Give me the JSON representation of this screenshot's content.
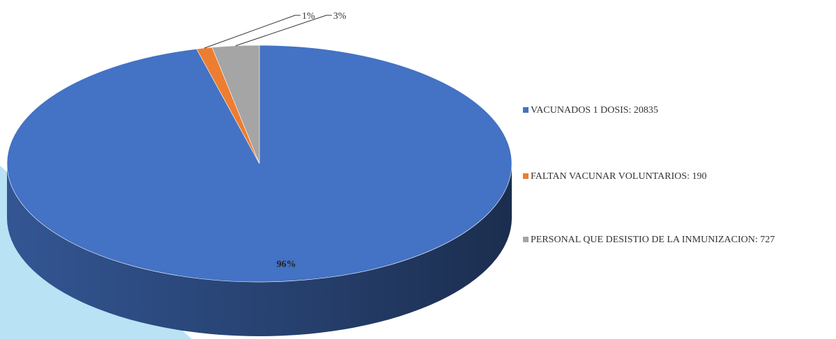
{
  "chart_data": {
    "type": "pie",
    "categories": [
      "VACUNADOS 1 DOSIS: 20835",
      "FALTAN VACUNAR VOLUNTARIOS: 190",
      "PERSONAL QUE DESISTIO DE LA INMUNIZACION: 727"
    ],
    "values": [
      96,
      1,
      3
    ],
    "value_labels": [
      "96%",
      "1%",
      "3%"
    ],
    "colors": [
      "#4472c4",
      "#ed7d31",
      "#a5a5a5"
    ],
    "legend": "right"
  }
}
